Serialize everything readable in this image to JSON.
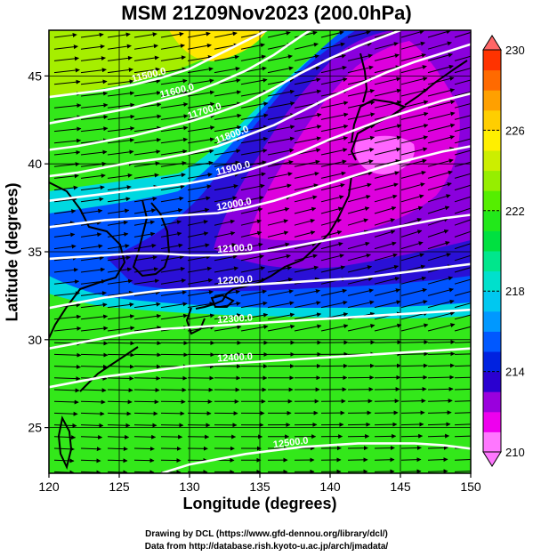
{
  "title": "MSM 21Z09Nov2023 (200.0hPa)",
  "x_axis": {
    "label": "Longitude (degrees)",
    "range": [
      120,
      150
    ],
    "ticks": [
      120,
      125,
      130,
      135,
      140,
      145,
      150
    ]
  },
  "y_axis": {
    "label": "Latitude  (degrees)",
    "range": [
      22.4,
      47.6
    ],
    "ticks": [
      25,
      30,
      35,
      40,
      45
    ]
  },
  "colorbar": {
    "range": [
      210,
      230
    ],
    "ticks": [
      210,
      214,
      218,
      222,
      226,
      230
    ],
    "colors": {
      "210": "#ff77ff",
      "211": "#ee00ee",
      "212": "#9a00dd",
      "213": "#2a00d0",
      "214": "#0022e0",
      "215": "#0058ff",
      "216": "#0098ff",
      "217": "#00c8f0",
      "218": "#00e0cc",
      "219": "#00e68c",
      "220": "#00e040",
      "221": "#22e81a",
      "222": "#55ee00",
      "223": "#96ee00",
      "224": "#ccee00",
      "225": "#ffef00",
      "226": "#ffce00",
      "227": "#ffa000",
      "228": "#ff6a00",
      "229": "#ff3300",
      "230": "#ff6666"
    }
  },
  "contours": [
    {
      "label": "11500.0",
      "points": [
        [
          120,
          43.8
        ],
        [
          122,
          44.0
        ],
        [
          124,
          44.2
        ],
        [
          126,
          44.5
        ],
        [
          128,
          44.9
        ],
        [
          130,
          45.4
        ],
        [
          132,
          46.2
        ],
        [
          134,
          47.0
        ],
        [
          135.5,
          47.6
        ]
      ]
    },
    {
      "label": "11600.0",
      "points": [
        [
          120,
          42.3
        ],
        [
          122,
          42.6
        ],
        [
          124,
          42.9
        ],
        [
          126,
          43.2
        ],
        [
          128,
          43.6
        ],
        [
          130,
          44.0
        ],
        [
          132,
          44.6
        ],
        [
          134,
          45.3
        ],
        [
          136,
          46.2
        ],
        [
          138,
          47.3
        ],
        [
          138.6,
          47.6
        ]
      ]
    },
    {
      "label": "11700.0",
      "points": [
        [
          120,
          40.8
        ],
        [
          122,
          41.0
        ],
        [
          124,
          41.3
        ],
        [
          126,
          41.6
        ],
        [
          128,
          42.0
        ],
        [
          130,
          42.4
        ],
        [
          132,
          42.9
        ],
        [
          134,
          43.5
        ],
        [
          136,
          44.3
        ],
        [
          138,
          45.2
        ],
        [
          140,
          46.0
        ],
        [
          142,
          46.7
        ],
        [
          144,
          47.3
        ],
        [
          145,
          47.6
        ]
      ]
    },
    {
      "label": "11800.0",
      "points": [
        [
          120,
          39.3
        ],
        [
          122,
          39.5
        ],
        [
          124,
          39.8
        ],
        [
          126,
          40.1
        ],
        [
          128,
          40.3
        ],
        [
          130,
          40.6
        ],
        [
          132,
          41.0
        ],
        [
          134,
          41.6
        ],
        [
          136,
          42.2
        ],
        [
          138,
          43.0
        ],
        [
          140,
          43.8
        ],
        [
          142,
          44.5
        ],
        [
          144,
          45.2
        ],
        [
          146,
          45.8
        ],
        [
          148,
          46.3
        ],
        [
          150,
          46.8
        ]
      ]
    },
    {
      "label": "11900.0",
      "points": [
        [
          120,
          37.9
        ],
        [
          122,
          38.1
        ],
        [
          124,
          38.3
        ],
        [
          126,
          38.5
        ],
        [
          128,
          38.7
        ],
        [
          130,
          38.9
        ],
        [
          132,
          39.2
        ],
        [
          134,
          39.6
        ],
        [
          136,
          40.1
        ],
        [
          138,
          40.7
        ],
        [
          140,
          41.4
        ],
        [
          142,
          42.0
        ],
        [
          144,
          42.6
        ],
        [
          146,
          43.1
        ],
        [
          148,
          43.6
        ],
        [
          150,
          44.0
        ]
      ]
    },
    {
      "label": "12000.0",
      "points": [
        [
          120,
          36.4
        ],
        [
          122,
          36.6
        ],
        [
          124,
          36.8
        ],
        [
          126,
          36.9
        ],
        [
          128,
          37.0
        ],
        [
          130,
          37.1
        ],
        [
          132,
          37.2
        ],
        [
          134,
          37.5
        ],
        [
          136,
          37.9
        ],
        [
          138,
          38.4
        ],
        [
          140,
          38.9
        ],
        [
          142,
          39.4
        ],
        [
          144,
          39.9
        ],
        [
          146,
          40.3
        ],
        [
          148,
          40.7
        ],
        [
          150,
          41.0
        ]
      ]
    },
    {
      "label": "12100.0",
      "points": [
        [
          120,
          34.6
        ],
        [
          122,
          34.7
        ],
        [
          124,
          34.8
        ],
        [
          126,
          34.9
        ],
        [
          128,
          34.9
        ],
        [
          130,
          34.8
        ],
        [
          132,
          34.8
        ],
        [
          134,
          34.9
        ],
        [
          136,
          35.1
        ],
        [
          138,
          35.4
        ],
        [
          140,
          35.7
        ],
        [
          142,
          36.0
        ],
        [
          144,
          36.3
        ],
        [
          146,
          36.6
        ],
        [
          148,
          36.9
        ],
        [
          150,
          37.1
        ]
      ]
    },
    {
      "label": "12200.0",
      "points": [
        [
          120,
          31.8
        ],
        [
          122,
          32.1
        ],
        [
          124,
          32.4
        ],
        [
          126,
          32.6
        ],
        [
          128,
          32.8
        ],
        [
          130,
          32.9
        ],
        [
          132,
          33.0
        ],
        [
          134,
          33.1
        ],
        [
          136,
          33.2
        ],
        [
          138,
          33.3
        ],
        [
          140,
          33.4
        ],
        [
          142,
          33.5
        ],
        [
          144,
          33.7
        ],
        [
          146,
          33.9
        ],
        [
          148,
          34.1
        ],
        [
          150,
          34.3
        ]
      ]
    },
    {
      "label": "12300.0",
      "points": [
        [
          120,
          29.5
        ],
        [
          122,
          29.8
        ],
        [
          124,
          30.1
        ],
        [
          126,
          30.4
        ],
        [
          128,
          30.6
        ],
        [
          130,
          30.7
        ],
        [
          132,
          30.8
        ],
        [
          134,
          30.9
        ],
        [
          136,
          31.0
        ],
        [
          138,
          31.1
        ],
        [
          140,
          31.2
        ],
        [
          142,
          31.3
        ],
        [
          144,
          31.4
        ],
        [
          146,
          31.5
        ],
        [
          148,
          31.6
        ],
        [
          150,
          31.7
        ]
      ]
    },
    {
      "label": "12400.0",
      "points": [
        [
          120,
          27.3
        ],
        [
          122,
          27.6
        ],
        [
          124,
          27.9
        ],
        [
          126,
          28.1
        ],
        [
          128,
          28.3
        ],
        [
          130,
          28.5
        ],
        [
          132,
          28.6
        ],
        [
          134,
          28.7
        ],
        [
          136,
          28.8
        ],
        [
          138,
          28.9
        ],
        [
          140,
          29.0
        ],
        [
          142,
          29.1
        ],
        [
          144,
          29.2
        ],
        [
          146,
          29.3
        ],
        [
          148,
          29.4
        ],
        [
          150,
          29.5
        ]
      ]
    },
    {
      "label": "12500.0",
      "points": [
        [
          128,
          22.4
        ],
        [
          130,
          22.9
        ],
        [
          132,
          23.2
        ],
        [
          134,
          23.5
        ],
        [
          136,
          23.7
        ],
        [
          138,
          23.9
        ],
        [
          140,
          24.0
        ],
        [
          142,
          24.1
        ],
        [
          144,
          24.1
        ],
        [
          146,
          24.1
        ],
        [
          148,
          24.0
        ],
        [
          150,
          23.8
        ]
      ]
    }
  ],
  "credits": {
    "line1": "Drawing by DCL (https://www.gfd-dennou.org/library/dcl/)",
    "line2": "Data from http://database.rish.kyoto-u.ac.jp/arch/jmadata/"
  }
}
